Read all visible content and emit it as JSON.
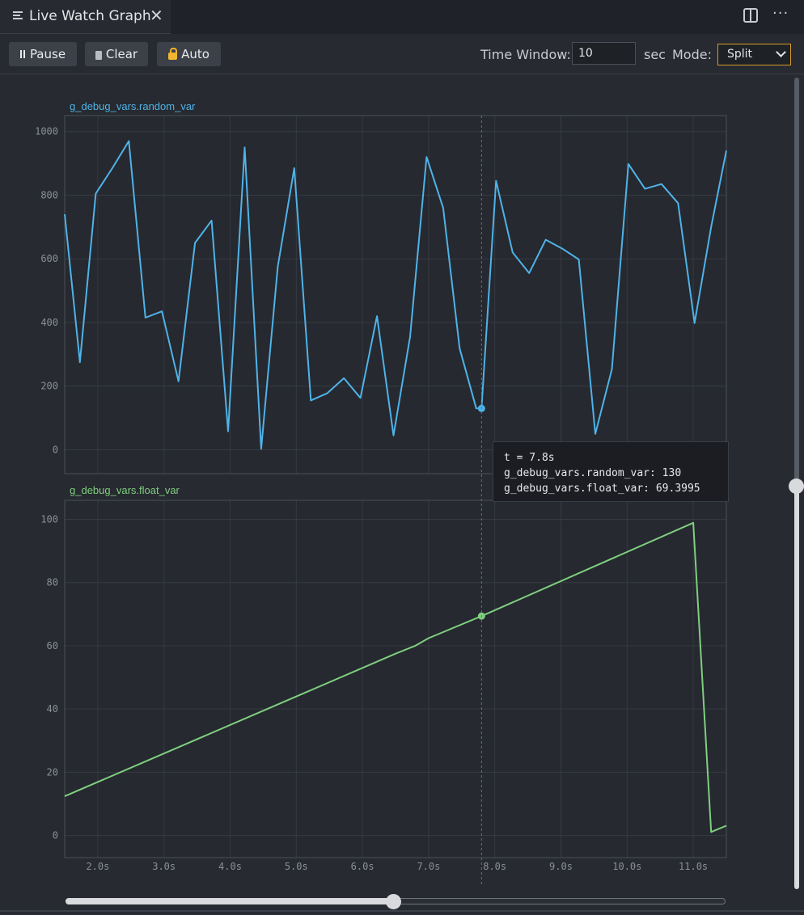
{
  "tab": {
    "title": "Live Watch Graph",
    "icon": "list-icon",
    "close_icon": "close-icon"
  },
  "header_actions": {
    "split_icon": "split-editor-icon",
    "more_label": "···"
  },
  "toolbar": {
    "pause_label": "Pause",
    "clear_label": "Clear",
    "auto_label": "Auto",
    "time_window_label": "Time Window:",
    "time_window_value": "10",
    "sec_label": "sec",
    "mode_label": "Mode:",
    "mode_value": "Split"
  },
  "colors": {
    "random_var": "#4fb3e8",
    "float_var": "#7fcf7f",
    "accent_orange": "#d99a2b"
  },
  "tooltip": {
    "line1": "t = 7.8s",
    "line2": "g_debug_vars.random_var: 130",
    "line3": "g_debug_vars.float_var: 69.3995"
  },
  "chart_data": [
    {
      "type": "line",
      "title": "g_debug_vars.random_var",
      "xlim": [
        1.5,
        11.5
      ],
      "ylim": [
        -75,
        1050
      ],
      "yticks": [
        0,
        200,
        400,
        600,
        800,
        1000
      ],
      "grid": true,
      "series": [
        {
          "name": "g_debug_vars.random_var",
          "color": "#4fb3e8",
          "x": [
            1.5,
            1.73,
            1.97,
            2.22,
            2.47,
            2.72,
            2.97,
            3.22,
            3.47,
            3.72,
            3.97,
            4.22,
            4.47,
            4.72,
            4.97,
            5.22,
            5.47,
            5.72,
            5.97,
            6.22,
            6.47,
            6.72,
            6.97,
            7.22,
            7.47,
            7.72,
            7.8,
            8.02,
            8.27,
            8.52,
            8.77,
            9.02,
            9.27,
            9.52,
            9.77,
            10.02,
            10.27,
            10.52,
            10.77,
            11.02,
            11.27,
            11.5
          ],
          "y": [
            740,
            275,
            805,
            885,
            970,
            415,
            435,
            215,
            650,
            720,
            58,
            950,
            3,
            575,
            885,
            155,
            178,
            225,
            163,
            420,
            45,
            355,
            920,
            760,
            318,
            130,
            130,
            845,
            620,
            555,
            660,
            632,
            598,
            50,
            253,
            898,
            820,
            835,
            775,
            398,
            700,
            940
          ]
        }
      ],
      "marker": {
        "x": 7.8,
        "y": 130
      }
    },
    {
      "type": "line",
      "title": "g_debug_vars.float_var",
      "xlim": [
        1.5,
        11.5
      ],
      "ylim": [
        -7,
        106
      ],
      "yticks": [
        0,
        20,
        40,
        60,
        80,
        100
      ],
      "xticks": [
        "2.0s",
        "3.0s",
        "4.0s",
        "5.0s",
        "6.0s",
        "7.0s",
        "8.0s",
        "9.0s",
        "10.0s",
        "11.0s"
      ],
      "xtick_values": [
        2,
        3,
        4,
        5,
        6,
        7,
        8,
        9,
        10,
        11
      ],
      "grid": true,
      "series": [
        {
          "name": "g_debug_vars.float_var",
          "color": "#7fcf7f",
          "x": [
            1.5,
            6.5,
            6.8,
            7.0,
            7.8,
            11.0,
            11.27,
            11.5
          ],
          "y": [
            12.4,
            57.5,
            60.0,
            62.4,
            69.4,
            98.9,
            1.1,
            3.1
          ]
        }
      ],
      "marker": {
        "x": 7.8,
        "y": 69.4
      }
    }
  ],
  "cursor_x": 7.8
}
